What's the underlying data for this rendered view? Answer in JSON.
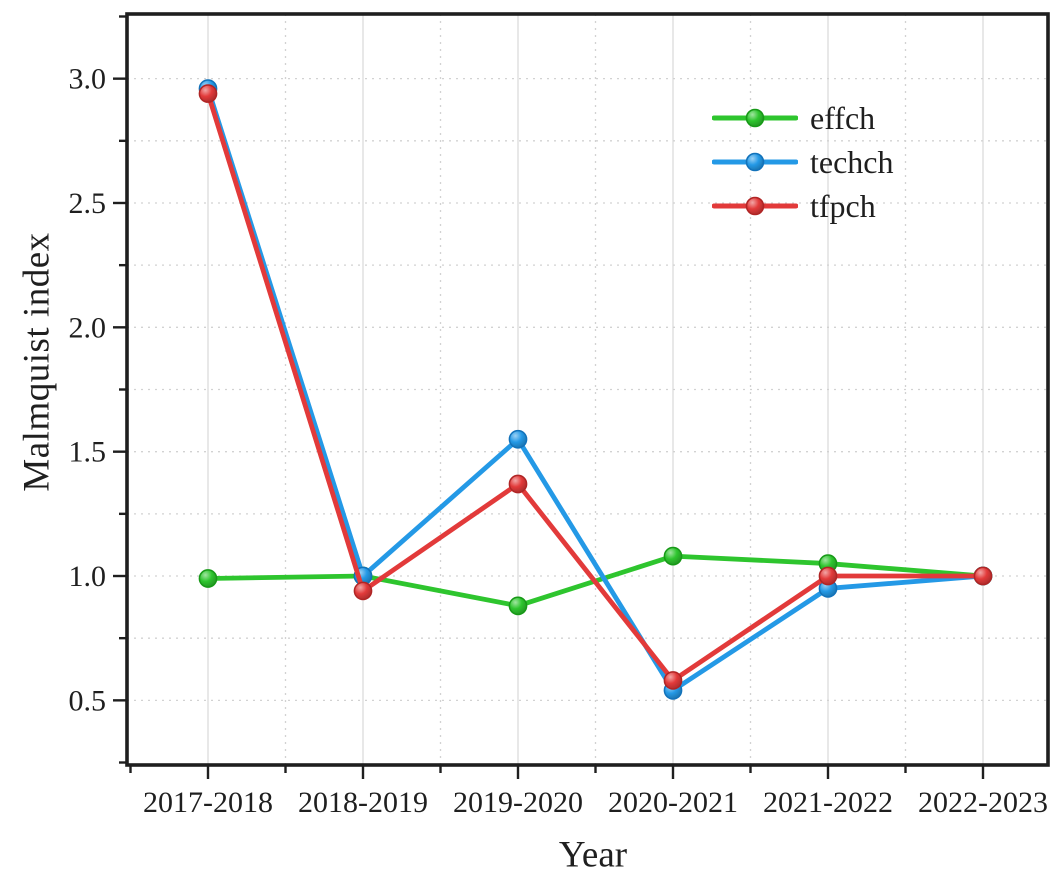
{
  "figure": {
    "background_color": "#ffffff",
    "axis_color": "#1f1f1f",
    "grid_major_color": "#dcdcdc",
    "grid_minor_color": "#d2d2d2"
  },
  "chart_data": {
    "type": "line",
    "title": "",
    "xlabel": "Year",
    "ylabel": "Malmquist index",
    "categories": [
      "2017-2018",
      "2018-2019",
      "2019-2020",
      "2020-2021",
      "2021-2022",
      "2022-2023"
    ],
    "series": [
      {
        "name": "effch",
        "color": "#2ec52e",
        "edge_color": "#179917",
        "values": [
          0.99,
          1.0,
          0.88,
          1.08,
          1.05,
          1.0
        ]
      },
      {
        "name": "techch",
        "color": "#2499e6",
        "edge_color": "#1272ba",
        "values": [
          2.96,
          1.0,
          1.55,
          0.54,
          0.95,
          1.0
        ]
      },
      {
        "name": "tfpch",
        "color": "#e23a3a",
        "edge_color": "#b02525",
        "values": [
          2.94,
          0.94,
          1.37,
          0.58,
          1.0,
          1.0
        ]
      }
    ],
    "ylim": [
      0.24,
      3.26
    ],
    "yticks": [
      0.5,
      1.0,
      1.5,
      2.0,
      2.5,
      3.0
    ],
    "ytick_labels": [
      "0.5",
      "1.0",
      "1.5",
      "2.0",
      "2.5",
      "3.0"
    ],
    "minor_tick_step": 0.25,
    "grid": true,
    "marker": "circle",
    "legend_position": "upper right"
  }
}
